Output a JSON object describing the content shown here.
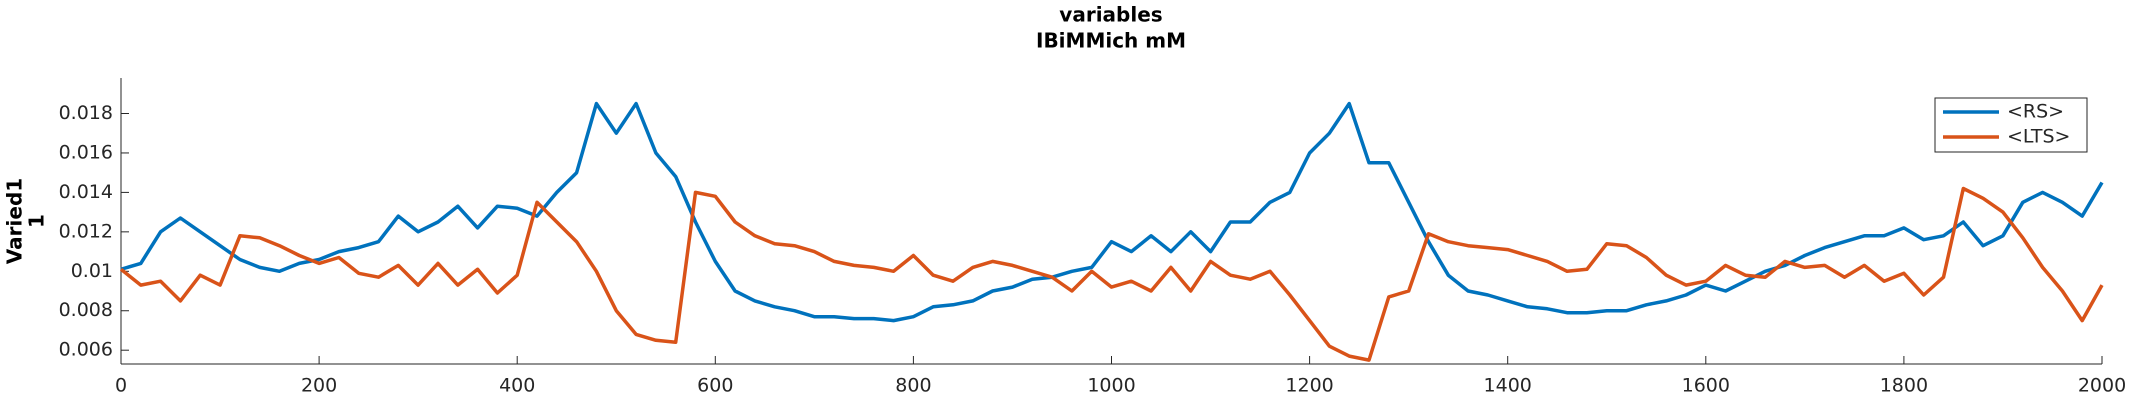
{
  "chart_data": {
    "type": "line",
    "title": "variables",
    "subtitle": "IBiMMich mM",
    "ylabel": [
      "Varied1",
      "1"
    ],
    "x": [
      0,
      20,
      40,
      60,
      80,
      100,
      120,
      140,
      160,
      180,
      200,
      220,
      240,
      260,
      280,
      300,
      320,
      340,
      360,
      380,
      400,
      420,
      440,
      460,
      480,
      500,
      520,
      540,
      560,
      580,
      600,
      620,
      640,
      660,
      680,
      700,
      720,
      740,
      760,
      780,
      800,
      820,
      840,
      860,
      880,
      900,
      920,
      940,
      960,
      980,
      1000,
      1020,
      1040,
      1060,
      1080,
      1100,
      1120,
      1140,
      1160,
      1180,
      1200,
      1220,
      1240,
      1260,
      1280,
      1300,
      1320,
      1340,
      1360,
      1380,
      1400,
      1420,
      1440,
      1460,
      1480,
      1500,
      1520,
      1540,
      1560,
      1580,
      1600,
      1620,
      1640,
      1660,
      1680,
      1700,
      1720,
      1740,
      1760,
      1780,
      1800,
      1820,
      1840,
      1860,
      1880,
      1900,
      1920,
      1940,
      1960,
      1980,
      2000
    ],
    "series": [
      {
        "name": "<RS>",
        "color": "#0072BD",
        "values": [
          0.0101,
          0.0104,
          0.012,
          0.0127,
          0.012,
          0.0113,
          0.0106,
          0.0102,
          0.01,
          0.0104,
          0.0106,
          0.011,
          0.0112,
          0.0115,
          0.0128,
          0.012,
          0.0125,
          0.0133,
          0.0122,
          0.0133,
          0.0132,
          0.0128,
          0.014,
          0.015,
          0.0185,
          0.017,
          0.0185,
          0.016,
          0.0148,
          0.0125,
          0.0105,
          0.009,
          0.0085,
          0.0082,
          0.008,
          0.0077,
          0.0077,
          0.0076,
          0.0076,
          0.0075,
          0.0077,
          0.0082,
          0.0083,
          0.0085,
          0.009,
          0.0092,
          0.0096,
          0.0097,
          0.01,
          0.0102,
          0.0115,
          0.011,
          0.0118,
          0.011,
          0.012,
          0.011,
          0.0125,
          0.0125,
          0.0135,
          0.014,
          0.016,
          0.017,
          0.0185,
          0.0155,
          0.0155,
          0.0135,
          0.0115,
          0.0098,
          0.009,
          0.0088,
          0.0085,
          0.0082,
          0.0081,
          0.0079,
          0.0079,
          0.008,
          0.008,
          0.0083,
          0.0085,
          0.0088,
          0.0093,
          0.009,
          0.0095,
          0.01,
          0.0103,
          0.0108,
          0.0112,
          0.0115,
          0.0118,
          0.0118,
          0.0122,
          0.0116,
          0.0118,
          0.0125,
          0.0113,
          0.0118,
          0.0135,
          0.014,
          0.0135,
          0.0128,
          0.0145
        ]
      },
      {
        "name": "<LTS>",
        "color": "#D95319",
        "values": [
          0.0101,
          0.0093,
          0.0095,
          0.0085,
          0.0098,
          0.0093,
          0.0118,
          0.0117,
          0.0113,
          0.0108,
          0.0104,
          0.0107,
          0.0099,
          0.0097,
          0.0103,
          0.0093,
          0.0104,
          0.0093,
          0.0101,
          0.0089,
          0.0098,
          0.0135,
          0.0125,
          0.0115,
          0.01,
          0.008,
          0.0068,
          0.0065,
          0.0064,
          0.014,
          0.0138,
          0.0125,
          0.0118,
          0.0114,
          0.0113,
          0.011,
          0.0105,
          0.0103,
          0.0102,
          0.01,
          0.0108,
          0.0098,
          0.0095,
          0.0102,
          0.0105,
          0.0103,
          0.01,
          0.0097,
          0.009,
          0.01,
          0.0092,
          0.0095,
          0.009,
          0.0102,
          0.009,
          0.0105,
          0.0098,
          0.0096,
          0.01,
          0.0088,
          0.0075,
          0.0062,
          0.0057,
          0.0055,
          0.0087,
          0.009,
          0.0119,
          0.0115,
          0.0113,
          0.0112,
          0.0111,
          0.0108,
          0.0105,
          0.01,
          0.0101,
          0.0114,
          0.0113,
          0.0107,
          0.0098,
          0.0093,
          0.0095,
          0.0103,
          0.0098,
          0.0097,
          0.0105,
          0.0102,
          0.0103,
          0.0097,
          0.0103,
          0.0095,
          0.0099,
          0.0088,
          0.0097,
          0.0142,
          0.0137,
          0.013,
          0.0117,
          0.0102,
          0.009,
          0.0075,
          0.0093
        ]
      }
    ],
    "xlim": [
      0,
      2000
    ],
    "xticks": [
      0,
      200,
      400,
      600,
      800,
      1000,
      1200,
      1400,
      1600,
      1800,
      2000
    ],
    "ylim": [
      0.0053,
      0.0198
    ],
    "yticks": [
      0.006,
      0.008,
      0.01,
      0.012,
      0.014,
      0.016,
      0.018
    ],
    "grid": false,
    "legend": "northeast"
  }
}
